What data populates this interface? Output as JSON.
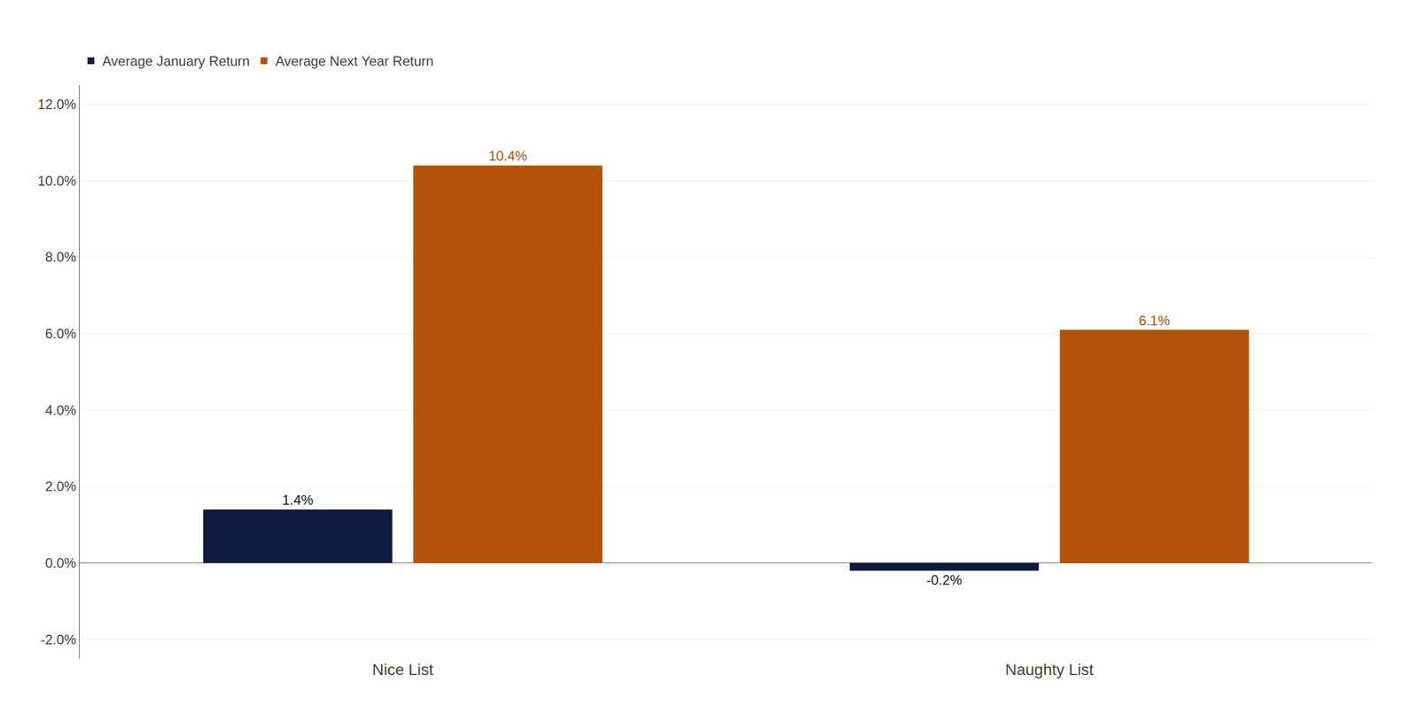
{
  "chart_data": {
    "type": "bar",
    "categories": [
      "Nice List",
      "Naughty List"
    ],
    "series": [
      {
        "name": "Average January Return",
        "color": "#0d1b3e",
        "values": [
          1.4,
          -0.2
        ],
        "value_labels": [
          "1.4%",
          "-0.2%"
        ]
      },
      {
        "name": "Average Next Year Return",
        "color": "#b5520a",
        "values": [
          10.4,
          6.1
        ],
        "value_labels": [
          "10.4%",
          "6.1%"
        ]
      }
    ],
    "ylim": [
      -2.5,
      12.5
    ],
    "yticks": [
      {
        "value": -2.0,
        "label": "-2.0%"
      },
      {
        "value": 0.0,
        "label": "0.0%"
      },
      {
        "value": 2.0,
        "label": "2.0%"
      },
      {
        "value": 4.0,
        "label": "4.0%"
      },
      {
        "value": 6.0,
        "label": "6.0%"
      },
      {
        "value": 8.0,
        "label": "8.0%"
      },
      {
        "value": 10.0,
        "label": "10.0%"
      },
      {
        "value": 12.0,
        "label": "12.0%"
      }
    ],
    "grid": true,
    "legend": "upper left",
    "data_labels": true
  }
}
